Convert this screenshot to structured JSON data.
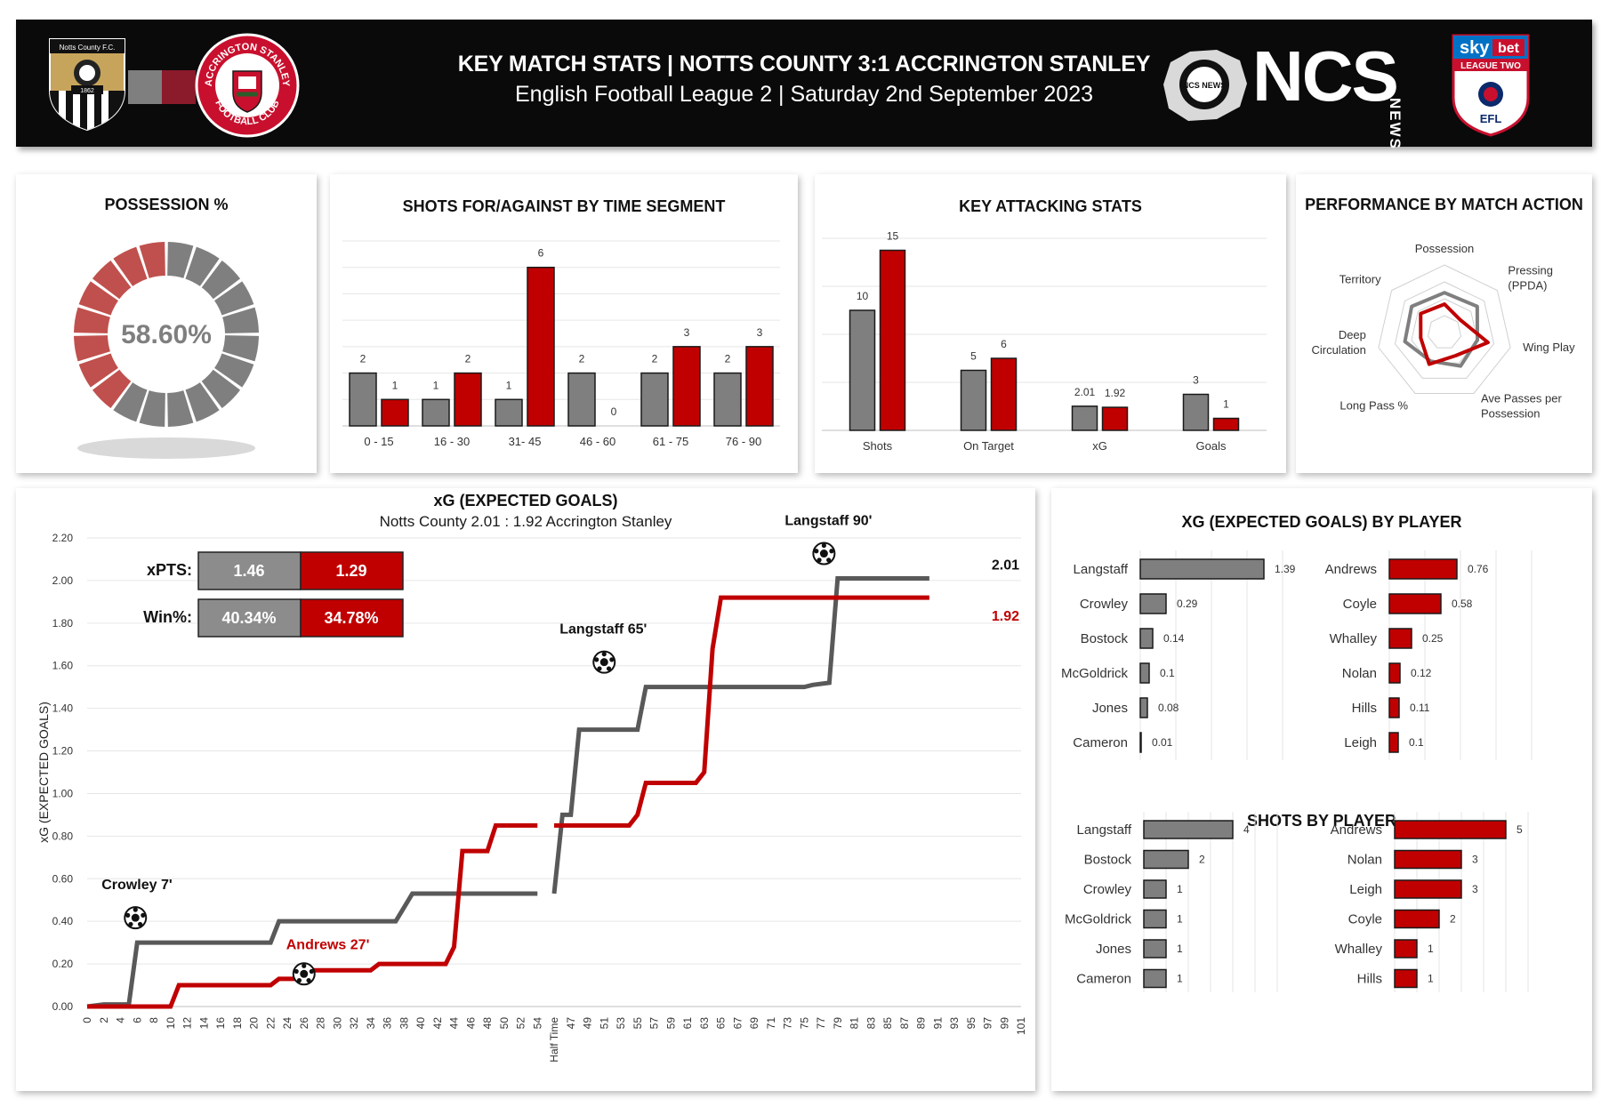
{
  "header": {
    "title": "KEY MATCH STATS | NOTTS COUNTY 3:1 ACCRINGTON STANLEY",
    "subtitle": "English Football League 2 | Saturday 2nd September 2023",
    "logos": {
      "home_badge_text": "Notts County F.C.",
      "home_badge_year": "1862",
      "away_badge_top": "ACCRINGTON STANLEY",
      "away_badge_bottom": "FOOTBALL CLUB",
      "ncs": "NCS",
      "ncs_side": "NEWS",
      "ncs_stamp": "NCS NEWS",
      "efl_sky": "sky",
      "efl_bet": "bet",
      "efl_league": "LEAGUE TWO",
      "efl": "EFL"
    }
  },
  "colors": {
    "home": "#7f7f7f",
    "away": "#c00000",
    "header_bg": "#0a0a0a"
  },
  "possession": {
    "title": "POSSESSION %",
    "value_label": "58.60%",
    "home_share": 0.586,
    "segments": 20
  },
  "chart_data": [
    {
      "type": "bar",
      "title": "SHOTS FOR/AGAINST BY TIME SEGMENT",
      "categories": [
        "0 - 15",
        "16 - 30",
        "31- 45",
        "46 - 60",
        "61 - 75",
        "76 - 90"
      ],
      "series": [
        {
          "values": [
            2,
            1,
            1,
            2,
            2,
            2
          ]
        },
        {
          "values": [
            1,
            2,
            6,
            0,
            3,
            3
          ]
        }
      ],
      "ylim": [
        0,
        7
      ],
      "grid": true
    },
    {
      "type": "bar",
      "title": "KEY ATTACKING STATS",
      "categories": [
        "Shots",
        "On Target",
        "xG",
        "Goals"
      ],
      "series": [
        {
          "values": [
            10,
            5,
            2.01,
            3
          ]
        },
        {
          "values": [
            15,
            6,
            1.92,
            1
          ]
        }
      ],
      "ylim": [
        0,
        16
      ],
      "grid": true
    },
    {
      "type": "radar",
      "title": "PERFORMANCE BY MATCH ACTION",
      "axes": [
        "Possession",
        "Pressing\n(PPDA)",
        "Wing Play",
        "Ave Passes per\nPossession",
        "Long Pass %",
        "Deep\nCirculation",
        "Territory"
      ],
      "series": [
        {
          "values": [
            0.59,
            0.62,
            0.5,
            0.55,
            0.47,
            0.6,
            0.62
          ]
        },
        {
          "values": [
            0.42,
            0.3,
            0.66,
            0.38,
            0.52,
            0.36,
            0.45
          ]
        }
      ],
      "rings": 4
    },
    {
      "type": "line",
      "title": "xG (EXPECTED GOALS)",
      "subtitle": "Notts County 2.01 : 1.92 Accrington Stanley",
      "ylabel": "xG (EXPECTED GOALS)",
      "ylim": [
        0,
        2.2
      ],
      "yticks": [
        "0.00",
        "0.20",
        "0.40",
        "0.60",
        "0.80",
        "1.00",
        "1.20",
        "1.40",
        "1.60",
        "1.80",
        "2.00",
        "2.20"
      ],
      "xticks": [
        "0",
        "2",
        "4",
        "6",
        "8",
        "10",
        "12",
        "14",
        "16",
        "18",
        "20",
        "22",
        "24",
        "26",
        "28",
        "30",
        "32",
        "34",
        "36",
        "38",
        "40",
        "42",
        "44",
        "46",
        "48",
        "50",
        "52",
        "54",
        "Half Time",
        "47",
        "49",
        "51",
        "53",
        "55",
        "57",
        "59",
        "61",
        "63",
        "65",
        "67",
        "69",
        "71",
        "73",
        "75",
        "77",
        "79",
        "81",
        "83",
        "85",
        "87",
        "89",
        "91",
        "93",
        "95",
        "97",
        "99",
        "101"
      ],
      "series": [
        {
          "end_label": "2.01",
          "points": [
            [
              0,
              0
            ],
            [
              2,
              0.01
            ],
            [
              4,
              0.01
            ],
            [
              5,
              0.01
            ],
            [
              6,
              0.3
            ],
            [
              22,
              0.3
            ],
            [
              23,
              0.4
            ],
            [
              37,
              0.4
            ],
            [
              39,
              0.53
            ],
            [
              54,
              0.53
            ],
            [
              56,
              0.53
            ],
            [
              57,
              0.9
            ],
            [
              58,
              0.9
            ],
            [
              59,
              1.3
            ],
            [
              61,
              1.3
            ],
            [
              62,
              1.3
            ],
            [
              66,
              1.3
            ],
            [
              67,
              1.5
            ],
            [
              86,
              1.5
            ],
            [
              87,
              1.51
            ],
            [
              89,
              1.52
            ],
            [
              90,
              2.01
            ],
            [
              92,
              2.01
            ],
            [
              101,
              2.01
            ]
          ]
        },
        {
          "end_label": "1.92",
          "points": [
            [
              0,
              0
            ],
            [
              10,
              0
            ],
            [
              11,
              0.1
            ],
            [
              22,
              0.1
            ],
            [
              23,
              0.13
            ],
            [
              26,
              0.13
            ],
            [
              27,
              0.17
            ],
            [
              34,
              0.17
            ],
            [
              35,
              0.2
            ],
            [
              43,
              0.2
            ],
            [
              44,
              0.28
            ],
            [
              45,
              0.73
            ],
            [
              48,
              0.73
            ],
            [
              49,
              0.85
            ],
            [
              54,
              0.85
            ],
            [
              56,
              0.85
            ],
            [
              65,
              0.85
            ],
            [
              66,
              0.9
            ],
            [
              67,
              1.05
            ],
            [
              73,
              1.05
            ],
            [
              74,
              1.1
            ],
            [
              75,
              1.68
            ],
            [
              76,
              1.92
            ],
            [
              101,
              1.92
            ]
          ]
        }
      ],
      "annotations": [
        {
          "text": "Crowley 7'",
          "minute": 6,
          "xg": 0.3,
          "team": "home"
        },
        {
          "text": "Andrews 27'",
          "minute": 26,
          "xg": 0.17,
          "team": "away"
        },
        {
          "text": "Langstaff 65'",
          "minute": 62,
          "xg": 1.5,
          "team": "home"
        },
        {
          "text": "Langstaff 90'",
          "minute": 89,
          "xg": 2.01,
          "team": "home"
        }
      ],
      "table": {
        "rows": [
          {
            "label": "xPTS:",
            "home": "1.46",
            "away": "1.29"
          },
          {
            "label": "Win%:",
            "home": "40.34%",
            "away": "34.78%"
          }
        ]
      }
    },
    {
      "type": "bar",
      "orientation": "horizontal",
      "title": "XG (EXPECTED GOALS) BY PLAYER",
      "groups": [
        {
          "team": "home",
          "categories": [
            "Langstaff",
            "Crowley",
            "Bostock",
            "McGoldrick",
            "Jones",
            "Cameron"
          ],
          "values": [
            1.39,
            0.29,
            0.14,
            0.1,
            0.08,
            0.01
          ]
        },
        {
          "team": "away",
          "categories": [
            "Andrews",
            "Coyle",
            "Whalley",
            "Nolan",
            "Hills",
            "Leigh"
          ],
          "values": [
            0.76,
            0.58,
            0.25,
            0.12,
            0.11,
            0.1
          ]
        }
      ]
    },
    {
      "type": "bar",
      "orientation": "horizontal",
      "title": "SHOTS BY PLAYER",
      "groups": [
        {
          "team": "home",
          "categories": [
            "Langstaff",
            "Bostock",
            "Crowley",
            "McGoldrick",
            "Jones",
            "Cameron"
          ],
          "values": [
            4,
            2,
            1,
            1,
            1,
            1
          ]
        },
        {
          "team": "away",
          "categories": [
            "Andrews",
            "Nolan",
            "Leigh",
            "Coyle",
            "Whalley",
            "Hills"
          ],
          "values": [
            5,
            3,
            3,
            2,
            1,
            1
          ]
        }
      ]
    }
  ]
}
